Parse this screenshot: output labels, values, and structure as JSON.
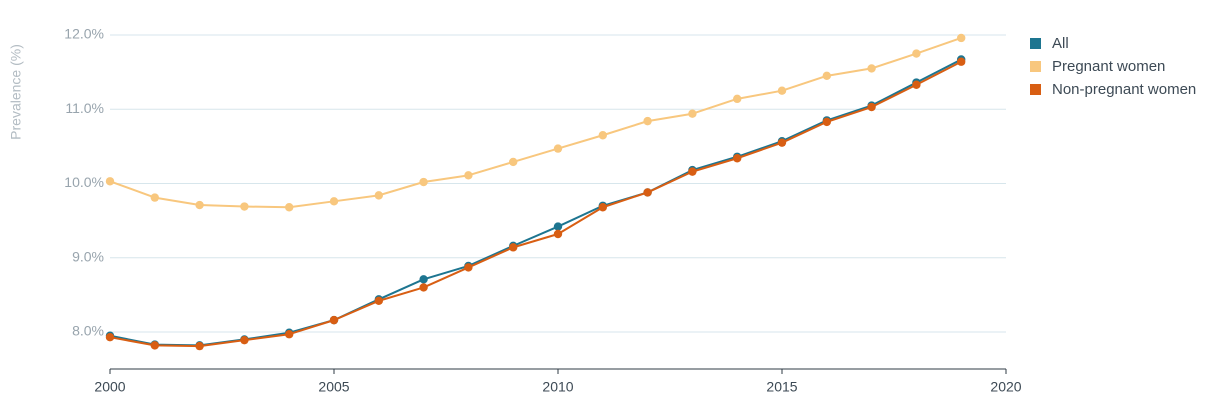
{
  "chart_data": {
    "type": "line",
    "title": "",
    "xlabel": "",
    "ylabel": "Prevalence (%)",
    "xlim": [
      2000,
      2020
    ],
    "ylim": [
      7.5,
      12.2
    ],
    "x_ticks": [
      "2000",
      "2005",
      "2010",
      "2015",
      "2020"
    ],
    "y_ticks": [
      "8.0%",
      "9.0%",
      "10.0%",
      "11.0%",
      "12.0%"
    ],
    "grid": true,
    "legend_position": "right",
    "x": [
      2000,
      2001,
      2002,
      2003,
      2004,
      2005,
      2006,
      2007,
      2008,
      2009,
      2010,
      2011,
      2012,
      2013,
      2014,
      2015,
      2016,
      2017,
      2018,
      2019
    ],
    "series": [
      {
        "name": "Pregnant women",
        "color": "#f8c77e",
        "values": [
          10.03,
          9.81,
          9.71,
          9.69,
          9.68,
          9.76,
          9.84,
          10.02,
          10.11,
          10.29,
          10.47,
          10.65,
          10.84,
          10.94,
          11.14,
          11.25,
          11.45,
          11.55,
          11.75,
          11.96
        ]
      },
      {
        "name": "All",
        "color": "#1d7590",
        "values": [
          7.95,
          7.83,
          7.82,
          7.9,
          7.99,
          8.16,
          8.44,
          8.71,
          8.89,
          9.16,
          9.42,
          9.7,
          9.88,
          10.18,
          10.36,
          10.57,
          10.85,
          11.05,
          11.36,
          11.67
        ]
      },
      {
        "name": "Non-pregnant women",
        "color": "#d85e13",
        "values": [
          7.93,
          7.82,
          7.81,
          7.89,
          7.97,
          8.16,
          8.42,
          8.6,
          8.87,
          9.14,
          9.32,
          9.68,
          9.88,
          10.16,
          10.34,
          10.55,
          10.83,
          11.03,
          11.33,
          11.64
        ]
      }
    ],
    "legend": [
      {
        "label": "All",
        "color": "#1d7590"
      },
      {
        "label": "Pregnant women",
        "color": "#f8c77e"
      },
      {
        "label": "Non-pregnant women",
        "color": "#d85e13"
      }
    ]
  }
}
